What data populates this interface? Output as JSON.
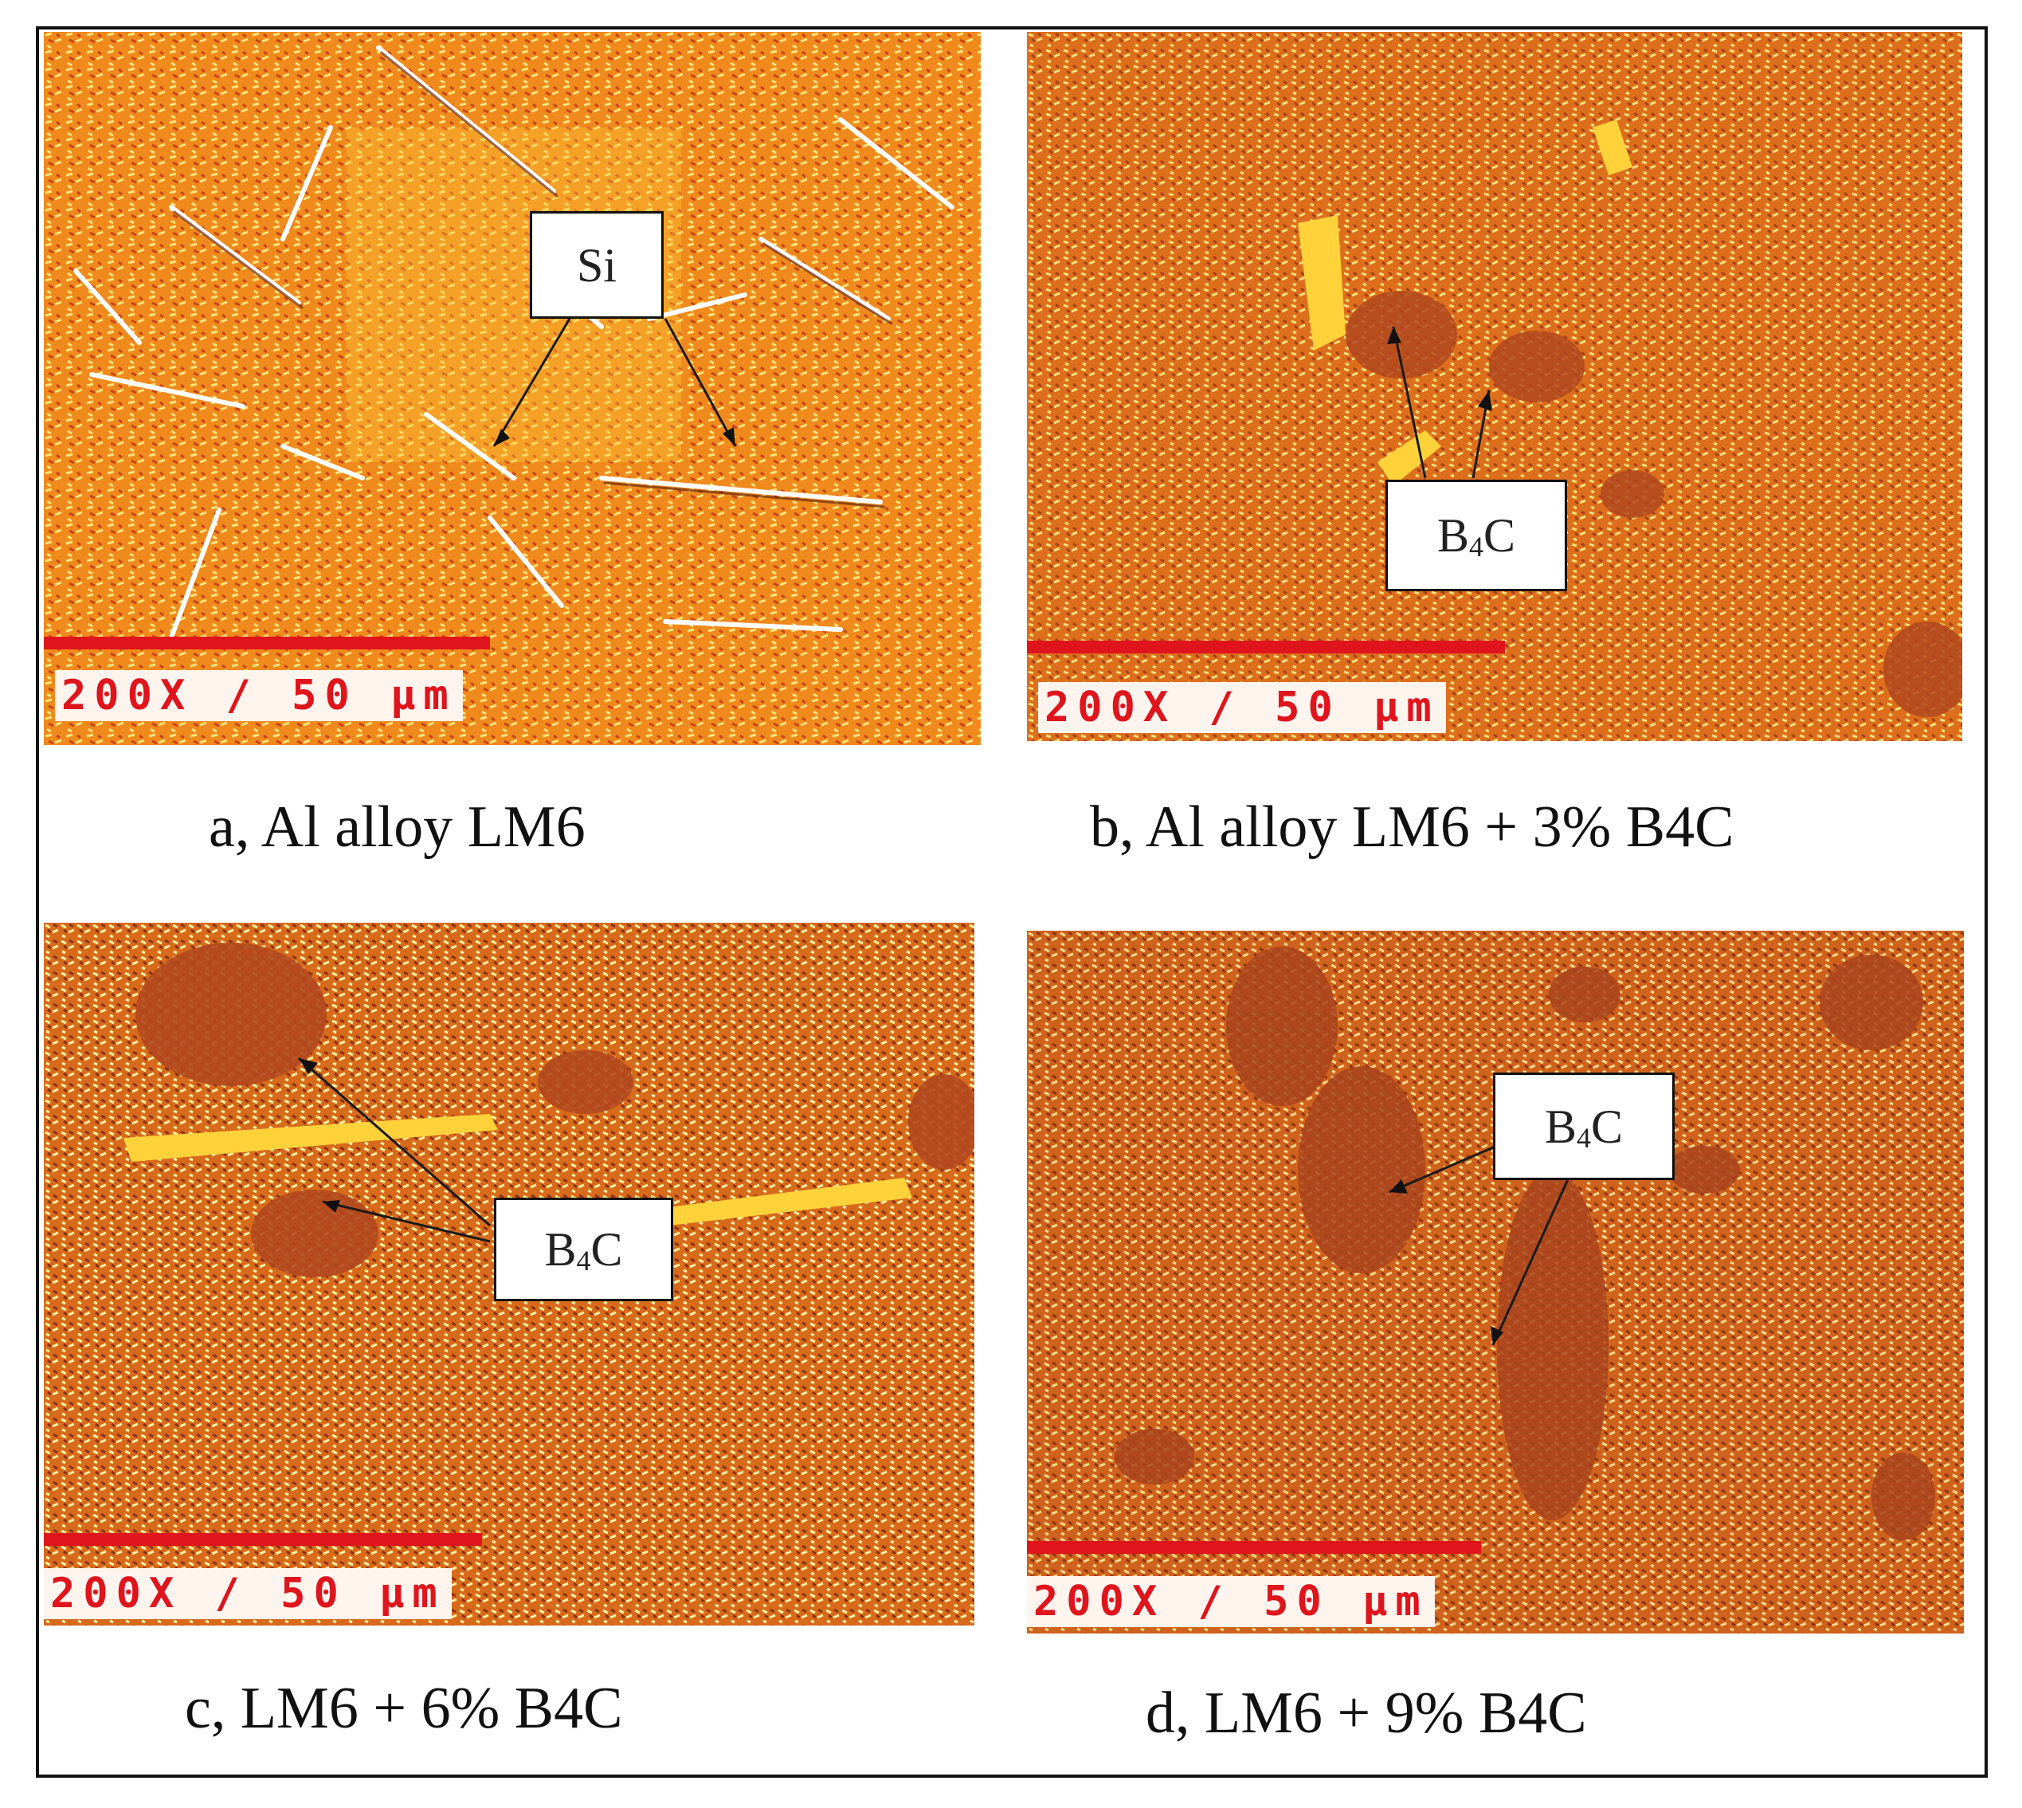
{
  "panels": [
    {
      "id": "a",
      "scale_text": "200X / 50 μm",
      "phase_label": "Si",
      "caption": "a, Al alloy LM6"
    },
    {
      "id": "b",
      "scale_text": "200X / 50 μm",
      "phase_label_main": "B",
      "phase_label_sub": "4",
      "phase_label_tail": "C",
      "caption": "b, Al alloy LM6 + 3% B4C"
    },
    {
      "id": "c",
      "scale_text": "200X / 50 μm",
      "phase_label_main": "B",
      "phase_label_sub": "4",
      "phase_label_tail": "C",
      "caption": "c, LM6 + 6% B4C"
    },
    {
      "id": "d",
      "scale_text": "200X / 50 μm",
      "phase_label_main": "B",
      "phase_label_sub": "4",
      "phase_label_tail": "C",
      "caption": "d, LM6 + 9% B4C"
    }
  ],
  "colors": {
    "matrix_orange": "#e8731a",
    "matrix_dark": "#c4501a",
    "si_yellow": "#ffd23a",
    "particle_brown": "#b4501e",
    "scale_red": "#e0141c"
  }
}
